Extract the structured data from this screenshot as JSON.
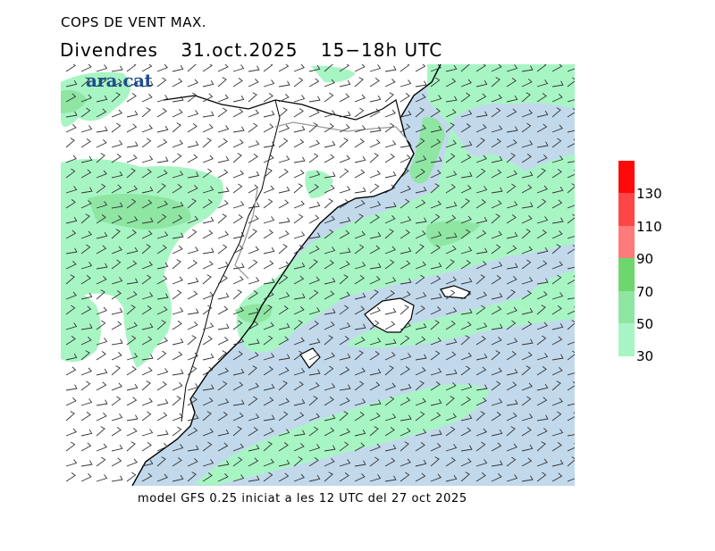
{
  "header": {
    "product": "COPS DE VENT MAX.",
    "day": "Divendres",
    "date": "31.oct.2025",
    "period": "15−18h UTC"
  },
  "logo": "ara.cat",
  "footer": "model GFS 0.25 iniciat a les 12 UTC del 27 oct 2025",
  "legend": {
    "bins": [
      {
        "from": 30,
        "to": 50,
        "color": "#a8f5c4"
      },
      {
        "from": 50,
        "to": 70,
        "color": "#8ee6a2"
      },
      {
        "from": 70,
        "to": 90,
        "color": "#6dd66d"
      },
      {
        "from": 90,
        "to": 110,
        "color": "#ff7a7a"
      },
      {
        "from": 110,
        "to": 130,
        "color": "#ff4646"
      },
      {
        "from": 130,
        "to": 150,
        "color": "#ff0a0a"
      }
    ],
    "ticks": [
      "30",
      "50",
      "70",
      "90",
      "110",
      "130"
    ]
  },
  "colors": {
    "sea": "#c2d9ec",
    "land": "#ffffff",
    "coast": "#000000",
    "border": "#999999",
    "barb": "#333333"
  }
}
